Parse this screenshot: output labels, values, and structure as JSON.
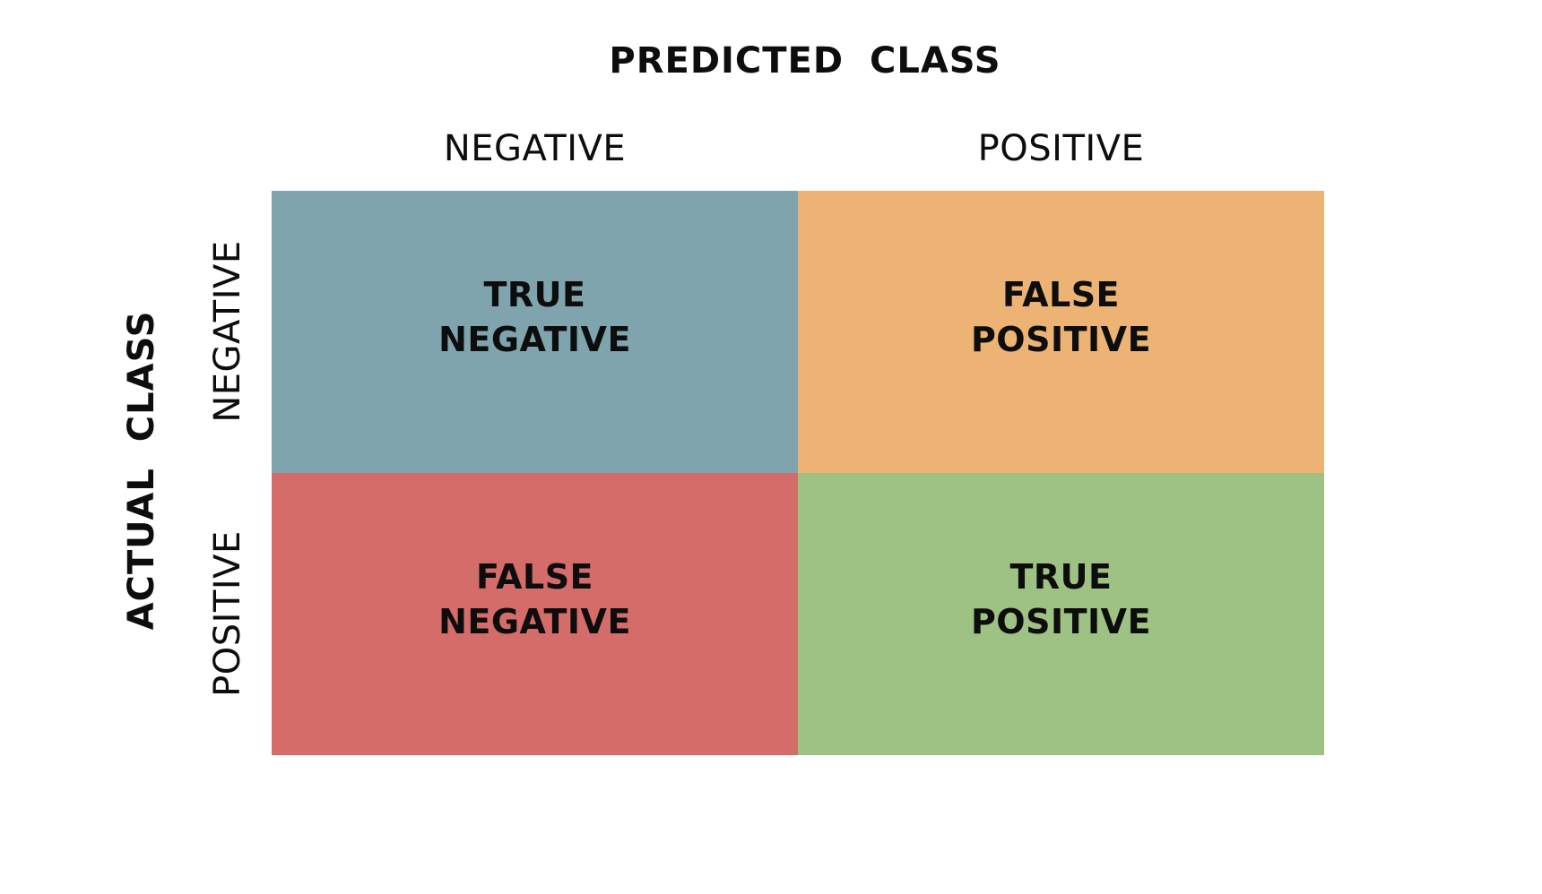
{
  "predicted_title": "PREDICTED  CLASS",
  "actual_title": "ACTUAL  CLASS",
  "columns": [
    "NEGATIVE",
    "POSITIVE"
  ],
  "rows": [
    "NEGATIVE",
    "POSITIVE"
  ],
  "cells": [
    {
      "line1": "TRUE",
      "line2": "NEGATIVE",
      "color": "#7fa4ad"
    },
    {
      "line1": "FALSE",
      "line2": "POSITIVE",
      "color": "#ecb375"
    },
    {
      "line1": "FALSE",
      "line2": "NEGATIVE",
      "color": "#d46c6a"
    },
    {
      "line1": "TRUE",
      "line2": "POSITIVE",
      "color": "#9ec283"
    }
  ]
}
